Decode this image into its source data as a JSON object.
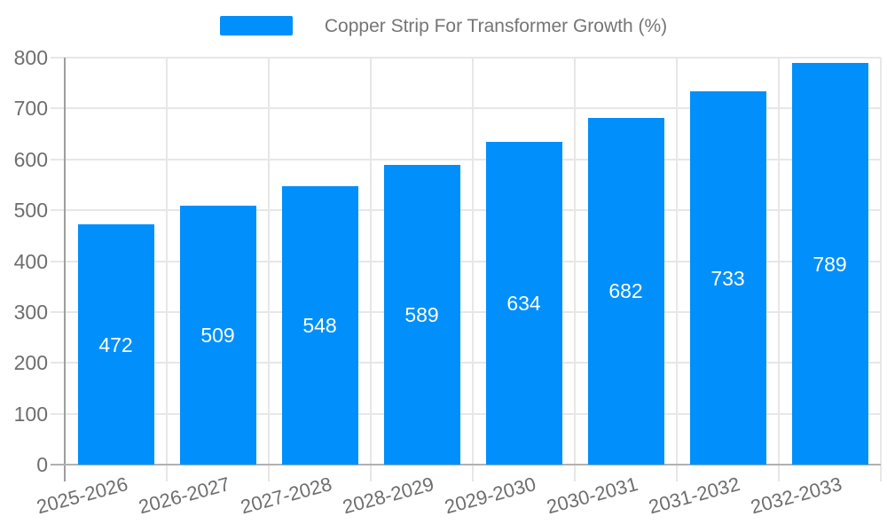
{
  "chart_data": {
    "type": "bar",
    "title": "Copper Strip For Transformer Growth (%)",
    "series_name": "Copper Strip For Transformer Growth (%)",
    "categories": [
      "2025-2026",
      "2026-2027",
      "2027-2028",
      "2028-2029",
      "2029-2030",
      "2030-2031",
      "2031-2032",
      "2032-2033"
    ],
    "values": [
      472,
      509,
      548,
      589,
      634,
      682,
      733,
      789
    ],
    "ylim": [
      0,
      800
    ],
    "ytick_step": 100,
    "ytick_labels": [
      "0",
      "100",
      "200",
      "300",
      "400",
      "500",
      "600",
      "700",
      "800"
    ],
    "grid": true,
    "legend_position": "top",
    "xlabel": "",
    "ylabel": "",
    "bar_color": "#008FFB",
    "value_label_color": "#FFFFFF",
    "axis_label_color": "#6E6E6E",
    "legend_text_color": "#757575",
    "gridline_color": "#E7E7E7",
    "y_axis_line_color": "#9E9E9E",
    "x_axis_line_color": "#B1B1B1",
    "tick_color": "#D7D7D7"
  }
}
